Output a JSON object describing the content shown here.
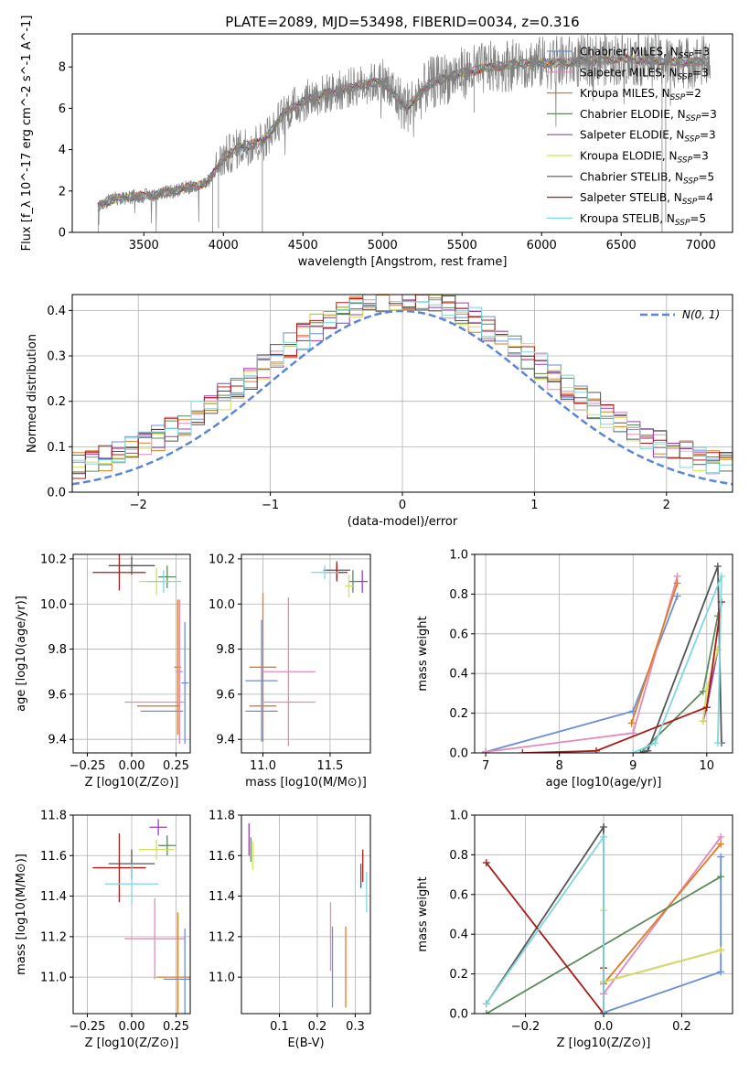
{
  "figure": {
    "title": "PLATE=2089, MJD=53498, FIBERID=0034, z=0.316"
  },
  "colors": {
    "Chabrier MILES": "#6a8fd6",
    "Salpeter MILES": "#e389b9",
    "Kroupa MILES": "#e07b22",
    "Chabrier ELODIE": "#5b8a5b",
    "Salpeter ELODIE": "#9b3fb5",
    "Kroupa ELODIE": "#d4e05a",
    "Chabrier STELIB": "#555555",
    "Salpeter STELIB": "#a81b1b",
    "Kroupa STELIB": "#7fd6dd",
    "data": "#808080",
    "normal": "#5b86d6"
  },
  "chart_data": [
    {
      "id": "spectrum",
      "type": "line",
      "title": "PLATE=2089, MJD=53498, FIBERID=0034, z=0.316",
      "xlabel": "wavelength [Angstrom, rest frame]",
      "ylabel": "Flux [f_λ 10^-17 erg cm^-2 s^-1 A^-1]",
      "xlim": [
        3050,
        7200
      ],
      "ylim": [
        0,
        9.6
      ],
      "xticks": [
        3500,
        4000,
        4500,
        5000,
        5500,
        6000,
        6500,
        7000
      ],
      "yticks": [
        0,
        2,
        4,
        6,
        8
      ],
      "grid": false,
      "legend_position": "top-right",
      "legend": [
        {
          "label": "Chabrier MILES, N",
          "sub": "SSP",
          "eq": "=3"
        },
        {
          "label": "Salpeter MILES, N",
          "sub": "SSP",
          "eq": "=3"
        },
        {
          "label": "Kroupa MILES, N",
          "sub": "SSP",
          "eq": "=2"
        },
        {
          "label": "Chabrier ELODIE, N",
          "sub": "SSP",
          "eq": "=3"
        },
        {
          "label": "Salpeter ELODIE, N",
          "sub": "SSP",
          "eq": "=3"
        },
        {
          "label": "Kroupa ELODIE, N",
          "sub": "SSP",
          "eq": "=3"
        },
        {
          "label": "Chabrier STELIB, N",
          "sub": "SSP",
          "eq": "=5"
        },
        {
          "label": "Salpeter STELIB, N",
          "sub": "SSP",
          "eq": "=4"
        },
        {
          "label": "Kroupa STELIB, N",
          "sub": "SSP",
          "eq": "=5"
        }
      ],
      "continuum_points": [
        [
          3200,
          1.2
        ],
        [
          3300,
          1.6
        ],
        [
          3400,
          1.7
        ],
        [
          3550,
          1.8
        ],
        [
          3700,
          2.0
        ],
        [
          3800,
          2.2
        ],
        [
          3900,
          2.4
        ],
        [
          4000,
          3.6
        ],
        [
          4100,
          4.1
        ],
        [
          4250,
          4.4
        ],
        [
          4400,
          5.9
        ],
        [
          4550,
          6.5
        ],
        [
          4700,
          6.8
        ],
        [
          4850,
          7.1
        ],
        [
          5000,
          7.3
        ],
        [
          5150,
          6.0
        ],
        [
          5300,
          7.2
        ],
        [
          5500,
          7.7
        ],
        [
          5700,
          8.0
        ],
        [
          5900,
          8.2
        ],
        [
          6100,
          8.2
        ],
        [
          6300,
          8.3
        ],
        [
          6500,
          8.4
        ],
        [
          6700,
          8.3
        ],
        [
          6900,
          8.2
        ],
        [
          7050,
          8.3
        ]
      ]
    },
    {
      "id": "residuals",
      "type": "histogram",
      "xlabel": "(data-model)/error",
      "ylabel": "Normed distribution",
      "xlim": [
        -2.5,
        2.5
      ],
      "ylim": [
        0,
        0.435
      ],
      "xticks": [
        -2,
        -1,
        0,
        1,
        2
      ],
      "yticks": [
        0.0,
        0.1,
        0.2,
        0.3,
        0.4
      ],
      "grid": true,
      "legend": [
        "N(0, 1)"
      ],
      "legend_position": "top-right"
    },
    {
      "id": "age-vs-Z",
      "type": "scatter",
      "xlabel": "Z [log10(Z/Z⊙)]",
      "ylabel": "age [log10(age/yr)]",
      "xlim": [
        -0.33,
        0.33
      ],
      "ylim": [
        9.34,
        10.22
      ],
      "xticks": [
        -0.25,
        0.0,
        0.25
      ],
      "yticks": [
        9.4,
        9.6,
        9.8,
        10.0,
        10.2
      ],
      "grid": true,
      "points": [
        {
          "model": "Chabrier STELIB",
          "x": 0.0,
          "xerr": 0.13,
          "y": 10.17,
          "yerr": 0.04
        },
        {
          "model": "Salpeter STELIB",
          "x": -0.07,
          "xerr": 0.15,
          "y": 10.14,
          "yerr": 0.08
        },
        {
          "model": "Chabrier ELODIE",
          "x": 0.2,
          "xerr": 0.05,
          "y": 10.12,
          "yerr": 0.05
        },
        {
          "model": "Kroupa ELODIE",
          "x": 0.14,
          "xerr": 0.1,
          "y": 10.1,
          "yerr": 0.06
        },
        {
          "model": "Kroupa STELIB",
          "x": 0.18,
          "xerr": 0.1,
          "y": 10.1,
          "yerr": 0.05
        },
        {
          "model": "Chabrier MILES",
          "x": 0.3,
          "xerr": 0.02,
          "y": 9.65,
          "yerr": 0.27
        },
        {
          "model": "Kroupa MILES",
          "x": 0.26,
          "xerr": 0.02,
          "y": 9.72,
          "yerr": 0.3
        },
        {
          "model": "Salpeter MILES",
          "x": 0.27,
          "xerr": 0.02,
          "y": 9.7,
          "yerr": 0.32
        },
        {
          "model": "Salpeter MILES",
          "x": 0.13,
          "xerr": 0.17,
          "y": 9.565,
          "yerr": 0.0
        },
        {
          "model": "Kroupa MILES",
          "x": 0.15,
          "xerr": 0.12,
          "y": 9.548,
          "yerr": 0.0
        },
        {
          "model": "Chabrier MILES",
          "x": 0.17,
          "xerr": 0.12,
          "y": 9.525,
          "yerr": 0.0
        }
      ]
    },
    {
      "id": "age-vs-mass",
      "type": "scatter",
      "xlabel": "mass [log10(M/M⊙)]",
      "ylabel": "",
      "xlim": [
        10.84,
        11.8
      ],
      "ylim": [
        9.34,
        10.22
      ],
      "xticks": [
        11.0,
        11.5
      ],
      "yticks": [
        9.4,
        9.6,
        9.8,
        10.0,
        10.2
      ],
      "grid": true,
      "points": [
        {
          "model": "Chabrier STELIB",
          "x": 11.55,
          "xerr": 0.1,
          "y": 10.15,
          "yerr": 0.04
        },
        {
          "model": "Salpeter STELIB",
          "x": 11.55,
          "xerr": 0.08,
          "y": 10.14,
          "yerr": 0.04
        },
        {
          "model": "Kroupa STELIB",
          "x": 11.46,
          "xerr": 0.1,
          "y": 10.14,
          "yerr": 0.03
        },
        {
          "model": "Chabrier ELODIE",
          "x": 11.67,
          "xerr": 0.03,
          "y": 10.1,
          "yerr": 0.05
        },
        {
          "model": "Kroupa ELODIE",
          "x": 11.64,
          "xerr": 0.03,
          "y": 10.08,
          "yerr": 0.05
        },
        {
          "model": "Salpeter ELODIE",
          "x": 11.74,
          "xerr": 0.04,
          "y": 10.1,
          "yerr": 0.05
        },
        {
          "model": "Chabrier MILES",
          "x": 10.99,
          "xerr": 0.12,
          "y": 9.66,
          "yerr": 0.27
        },
        {
          "model": "Kroupa MILES",
          "x": 11.0,
          "xerr": 0.1,
          "y": 9.72,
          "yerr": 0.33
        },
        {
          "model": "Salpeter MILES",
          "x": 11.19,
          "xerr": 0.2,
          "y": 9.7,
          "yerr": 0.33
        },
        {
          "model": "Chabrier MILES",
          "x": 10.99,
          "xerr": 0.12,
          "y": 9.525,
          "yerr": 0.0
        },
        {
          "model": "Kroupa MILES",
          "x": 11.0,
          "xerr": 0.1,
          "y": 9.548,
          "yerr": 0.0
        },
        {
          "model": "Salpeter MILES",
          "x": 11.19,
          "xerr": 0.2,
          "y": 9.565,
          "yerr": 0.0
        }
      ]
    },
    {
      "id": "weight-vs-age",
      "type": "line",
      "xlabel": "age [log10(age/yr)]",
      "ylabel": "mass weight",
      "xlim": [
        6.85,
        10.35
      ],
      "ylim": [
        0,
        1.0
      ],
      "xticks": [
        7,
        8,
        9,
        10
      ],
      "yticks": [
        0.0,
        0.2,
        0.4,
        0.6,
        0.8,
        1.0
      ],
      "grid": true,
      "series": [
        {
          "model": "Chabrier MILES",
          "x": [
            7.0,
            9.0,
            9.6
          ],
          "y": [
            0.005,
            0.21,
            0.79
          ]
        },
        {
          "model": "Salpeter MILES",
          "x": [
            7.0,
            9.0,
            9.6
          ],
          "y": [
            0.005,
            0.1,
            0.89
          ]
        },
        {
          "model": "Kroupa MILES",
          "x": [
            8.98,
            9.6
          ],
          "y": [
            0.15,
            0.855
          ]
        },
        {
          "model": "Chabrier ELODIE",
          "x": [
            9.1,
            9.95,
            10.15
          ],
          "y": [
            0.0,
            0.31,
            0.69
          ]
        },
        {
          "model": "Salpeter ELODIE",
          "x": [
            9.95,
            10.0,
            10.15
          ],
          "y": [
            0.16,
            0.23,
            0.52
          ]
        },
        {
          "model": "Kroupa ELODIE",
          "x": [
            9.95,
            10.0,
            10.15
          ],
          "y": [
            0.16,
            0.32,
            0.52
          ]
        },
        {
          "model": "Chabrier STELIB",
          "x": [
            9.1,
            9.2,
            10.15,
            10.2
          ],
          "y": [
            0.0,
            0.01,
            0.94,
            0.05
          ]
        },
        {
          "model": "Salpeter STELIB",
          "x": [
            7.5,
            8.5,
            10.0,
            10.2
          ],
          "y": [
            0.0,
            0.01,
            0.23,
            0.76
          ]
        },
        {
          "model": "Kroupa STELIB",
          "x": [
            9.0,
            9.3,
            10.2,
            10.15
          ],
          "y": [
            0.0,
            0.05,
            0.89,
            0.05
          ]
        }
      ]
    },
    {
      "id": "mass-vs-Z",
      "type": "scatter",
      "xlabel": "Z [log10(Z/Z⊙)]",
      "ylabel": "mass [log10(M/M⊙)]",
      "xlim": [
        -0.33,
        0.33
      ],
      "ylim": [
        10.82,
        11.8
      ],
      "xticks": [
        -0.25,
        0.0,
        0.25
      ],
      "yticks": [
        11.0,
        11.2,
        11.4,
        11.6,
        11.8
      ],
      "grid": true,
      "points": [
        {
          "model": "Salpeter ELODIE",
          "x": 0.15,
          "xerr": 0.05,
          "y": 11.74,
          "yerr": 0.04
        },
        {
          "model": "Chabrier ELODIE",
          "x": 0.2,
          "xerr": 0.05,
          "y": 11.65,
          "yerr": 0.05
        },
        {
          "model": "Kroupa ELODIE",
          "x": 0.14,
          "xerr": 0.1,
          "y": 11.63,
          "yerr": 0.05
        },
        {
          "model": "Chabrier STELIB",
          "x": 0.0,
          "xerr": 0.13,
          "y": 11.56,
          "yerr": 0.07
        },
        {
          "model": "Salpeter STELIB",
          "x": -0.07,
          "xerr": 0.15,
          "y": 11.54,
          "yerr": 0.17
        },
        {
          "model": "Kroupa STELIB",
          "x": 0.0,
          "xerr": 0.15,
          "y": 11.46,
          "yerr": 0.1
        },
        {
          "model": "Salpeter MILES",
          "x": 0.13,
          "xerr": 0.17,
          "y": 11.19,
          "yerr": 0.2
        },
        {
          "model": "Kroupa MILES",
          "x": 0.26,
          "xerr": 0.12,
          "y": 11.0,
          "yerr": 0.32
        },
        {
          "model": "Chabrier MILES",
          "x": 0.3,
          "xerr": 0.12,
          "y": 10.99,
          "yerr": 0.25
        }
      ]
    },
    {
      "id": "mass-vs-EBV",
      "type": "scatter",
      "xlabel": "E(B-V)",
      "ylabel": "",
      "xlim": [
        0.0,
        0.34
      ],
      "ylim": [
        10.82,
        11.8
      ],
      "xticks": [
        0.1,
        0.2,
        0.3
      ],
      "yticks": [
        11.0,
        11.2,
        11.4,
        11.6,
        11.8
      ],
      "grid": true,
      "points": [
        {
          "model": "Salpeter ELODIE",
          "x": 0.02,
          "xerr": 0.0,
          "y": 11.68,
          "yerr": 0.08
        },
        {
          "model": "Chabrier ELODIE",
          "x": 0.025,
          "xerr": 0.0,
          "y": 11.63,
          "yerr": 0.06
        },
        {
          "model": "Kroupa ELODIE",
          "x": 0.03,
          "xerr": 0.0,
          "y": 11.6,
          "yerr": 0.07
        },
        {
          "model": "Chabrier STELIB",
          "x": 0.315,
          "xerr": 0.0,
          "y": 11.5,
          "yerr": 0.06
        },
        {
          "model": "Salpeter STELIB",
          "x": 0.32,
          "xerr": 0.0,
          "y": 11.55,
          "yerr": 0.08
        },
        {
          "model": "Kroupa STELIB",
          "x": 0.33,
          "xerr": 0.0,
          "y": 11.42,
          "yerr": 0.1
        },
        {
          "model": "Salpeter MILES",
          "x": 0.235,
          "xerr": 0.0,
          "y": 11.2,
          "yerr": 0.17
        },
        {
          "model": "Chabrier MILES",
          "x": 0.24,
          "xerr": 0.0,
          "y": 11.05,
          "yerr": 0.2
        },
        {
          "model": "Kroupa MILES",
          "x": 0.275,
          "xerr": 0.0,
          "y": 11.05,
          "yerr": 0.2
        }
      ]
    },
    {
      "id": "weight-vs-Z",
      "type": "line",
      "xlabel": "Z [log10(Z/Z⊙)]",
      "ylabel": "mass weight",
      "xlim": [
        -0.33,
        0.33
      ],
      "ylim": [
        0,
        1.0
      ],
      "xticks": [
        -0.2,
        0.0,
        0.2
      ],
      "yticks": [
        0.0,
        0.2,
        0.4,
        0.6,
        0.8,
        1.0
      ],
      "grid": true,
      "series": [
        {
          "model": "Chabrier MILES",
          "x": [
            0.0,
            0.3,
            0.3
          ],
          "y": [
            0.005,
            0.21,
            0.79
          ]
        },
        {
          "model": "Salpeter MILES",
          "x": [
            0.0,
            0.3
          ],
          "y": [
            0.1,
            0.89
          ]
        },
        {
          "model": "Kroupa MILES",
          "x": [
            0.0,
            0.3
          ],
          "y": [
            0.15,
            0.855
          ]
        },
        {
          "model": "Chabrier ELODIE",
          "x": [
            -0.3,
            0.3
          ],
          "y": [
            0.0,
            0.69
          ]
        },
        {
          "model": "Salpeter ELODIE",
          "x": [
            0.0,
            0.3
          ],
          "y": [
            0.16,
            0.32
          ]
        },
        {
          "model": "Kroupa ELODIE",
          "x": [
            0.0,
            0.0,
            0.3
          ],
          "y": [
            0.52,
            0.16,
            0.32
          ]
        },
        {
          "model": "Chabrier STELIB",
          "x": [
            -0.3,
            0.0,
            0.0
          ],
          "y": [
            0.05,
            0.94,
            0.0
          ]
        },
        {
          "model": "Salpeter STELIB",
          "x": [
            -0.3,
            0.0,
            0.0
          ],
          "y": [
            0.76,
            0.0,
            0.23
          ]
        },
        {
          "model": "Kroupa STELIB",
          "x": [
            -0.3,
            0.0,
            0.0
          ],
          "y": [
            0.05,
            0.89,
            0.0
          ]
        }
      ]
    }
  ]
}
